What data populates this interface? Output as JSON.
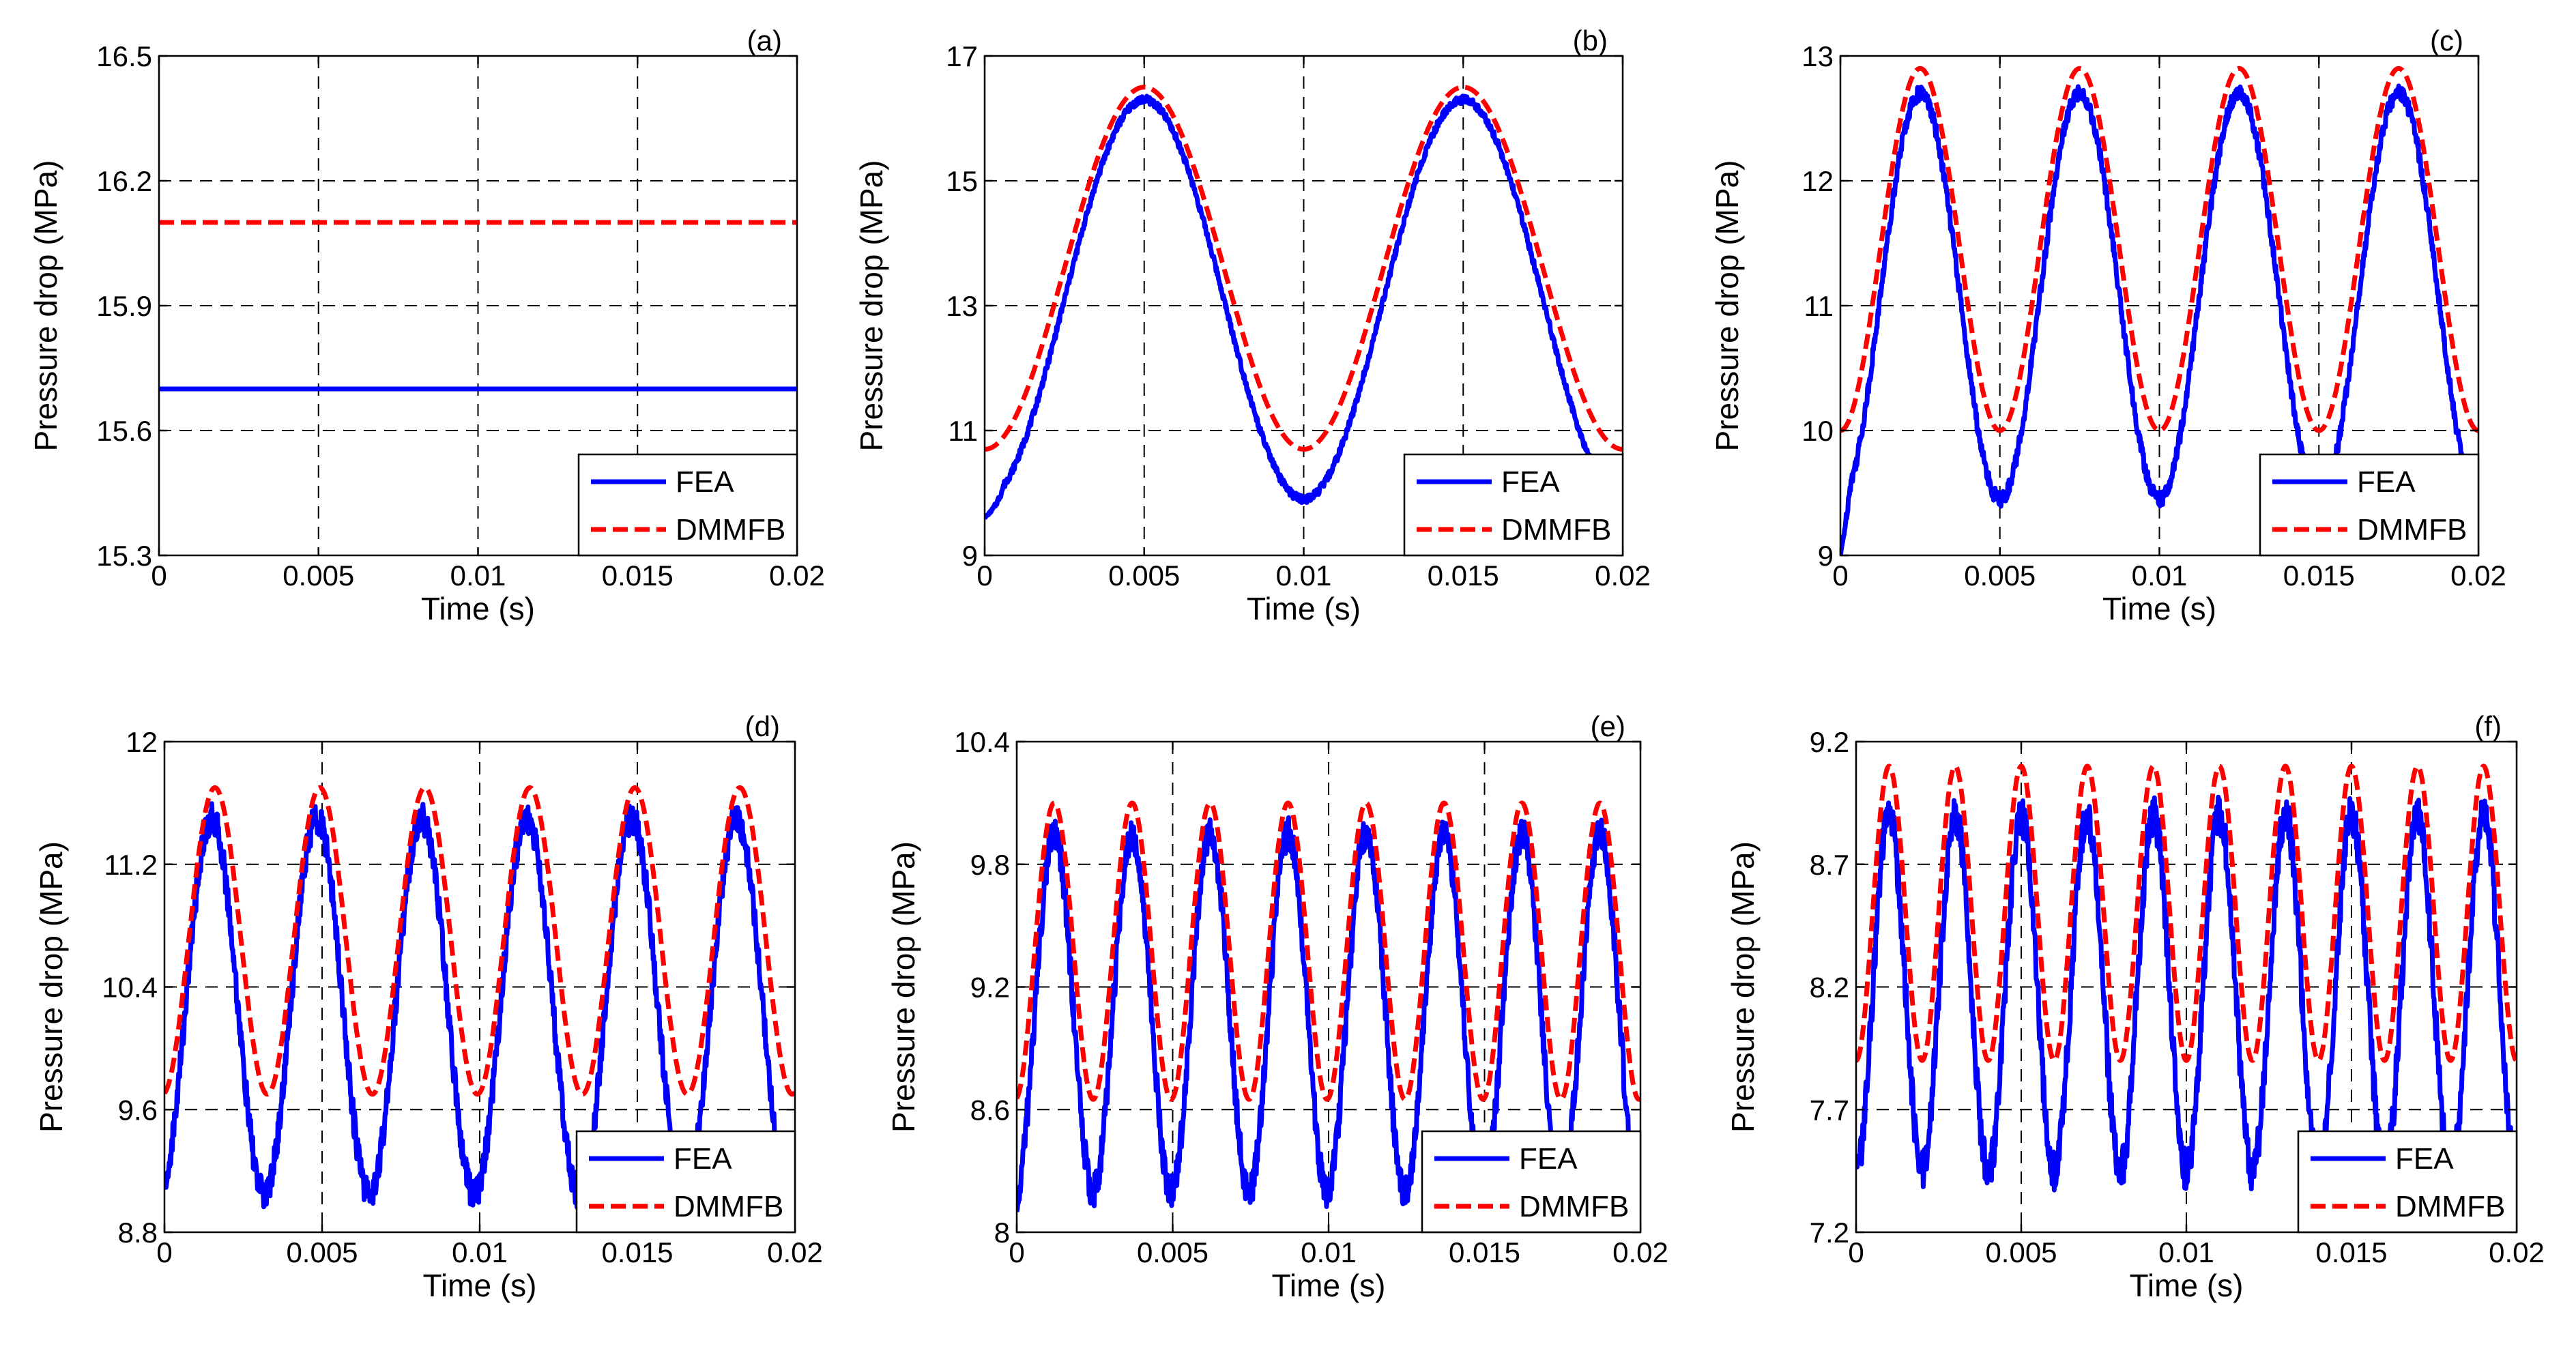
{
  "figure": {
    "xlabel": "Time (s)",
    "ylabel": "Pressure drop (MPa)",
    "legend_entries": [
      "FEA",
      "DMMFB"
    ],
    "colors": {
      "fea": "#0000ff",
      "dmmfb": "#ff0000"
    }
  },
  "chart_data": [
    {
      "panel_label": "(a)",
      "type": "line",
      "title": "",
      "xlabel": "Time (s)",
      "ylabel": "Pressure drop (MPa)",
      "xlim": [
        0,
        0.02
      ],
      "ylim": [
        15.3,
        16.5
      ],
      "xticks": [
        0,
        0.005,
        0.01,
        0.015,
        0.02
      ],
      "xtick_labels": [
        "0",
        "0.005",
        "0.01",
        "0.015",
        "0.02"
      ],
      "yticks": [
        15.3,
        15.6,
        15.9,
        16.2,
        16.5
      ],
      "ytick_labels": [
        "15.3",
        "15.6",
        "15.9",
        "16.2",
        "16.5"
      ],
      "grid": true,
      "legend": "bottom-right",
      "series": [
        {
          "name": "FEA",
          "style": "solid",
          "color": "#0000ff",
          "model": {
            "kind": "constant",
            "value": 15.7
          }
        },
        {
          "name": "DMMFB",
          "style": "dashed",
          "color": "#ff0000",
          "model": {
            "kind": "constant",
            "value": 16.1
          }
        }
      ]
    },
    {
      "panel_label": "(b)",
      "type": "line",
      "title": "",
      "xlabel": "Time (s)",
      "ylabel": "Pressure drop (MPa)",
      "xlim": [
        0,
        0.02
      ],
      "ylim": [
        9,
        17
      ],
      "xticks": [
        0,
        0.005,
        0.01,
        0.015,
        0.02
      ],
      "xtick_labels": [
        "0",
        "0.005",
        "0.01",
        "0.015",
        "0.02"
      ],
      "yticks": [
        9,
        11,
        13,
        15,
        17
      ],
      "ytick_labels": [
        "9",
        "11",
        "13",
        "15",
        "17"
      ],
      "grid": true,
      "legend": "bottom-right",
      "series": [
        {
          "name": "FEA",
          "style": "solid",
          "color": "#0000ff",
          "model": {
            "kind": "sinusoid",
            "min": 9.9,
            "max": 16.3,
            "period": 0.01,
            "peak_t": 0.005,
            "start": 9.6,
            "noise": 0.06
          }
        },
        {
          "name": "DMMFB",
          "style": "dashed",
          "color": "#ff0000",
          "model": {
            "kind": "sinusoid",
            "min": 10.7,
            "max": 16.5,
            "period": 0.01,
            "peak_t": 0.005,
            "noise": 0
          }
        }
      ]
    },
    {
      "panel_label": "(c)",
      "type": "line",
      "title": "",
      "xlabel": "Time (s)",
      "ylabel": "Pressure drop (MPa)",
      "xlim": [
        0,
        0.02
      ],
      "ylim": [
        9,
        13
      ],
      "xticks": [
        0,
        0.005,
        0.01,
        0.015,
        0.02
      ],
      "xtick_labels": [
        "0",
        "0.005",
        "0.01",
        "0.015",
        "0.02"
      ],
      "yticks": [
        9,
        10,
        11,
        12,
        13
      ],
      "ytick_labels": [
        "9",
        "10",
        "11",
        "12",
        "13"
      ],
      "grid": true,
      "legend": "bottom-right",
      "series": [
        {
          "name": "FEA",
          "style": "solid",
          "color": "#0000ff",
          "model": {
            "kind": "sinusoid",
            "min": 9.45,
            "max": 12.7,
            "period": 0.005,
            "peak_t": 0.0025,
            "start": 9.0,
            "noise": 0.06
          }
        },
        {
          "name": "DMMFB",
          "style": "dashed",
          "color": "#ff0000",
          "model": {
            "kind": "sinusoid",
            "min": 10.0,
            "max": 12.9,
            "period": 0.005,
            "peak_t": 0.0025,
            "noise": 0
          }
        }
      ]
    },
    {
      "panel_label": "(d)",
      "type": "line",
      "title": "",
      "xlabel": "Time (s)",
      "ylabel": "Pressure drop (MPa)",
      "xlim": [
        0,
        0.02
      ],
      "ylim": [
        8.8,
        12
      ],
      "xticks": [
        0,
        0.005,
        0.01,
        0.015,
        0.02
      ],
      "xtick_labels": [
        "0",
        "0.005",
        "0.01",
        "0.015",
        "0.02"
      ],
      "yticks": [
        8.8,
        9.6,
        10.4,
        11.2,
        12
      ],
      "ytick_labels": [
        "8.8",
        "9.6",
        "10.4",
        "11.2",
        "12"
      ],
      "grid": true,
      "legend": "bottom-right",
      "series": [
        {
          "name": "FEA",
          "style": "solid",
          "color": "#0000ff",
          "model": {
            "kind": "sinusoid",
            "min": 9.05,
            "max": 11.5,
            "period": 0.00333,
            "peak_t": 0.0015,
            "start": 9.1,
            "noise": 0.1
          }
        },
        {
          "name": "DMMFB",
          "style": "dashed",
          "color": "#ff0000",
          "model": {
            "kind": "sinusoid",
            "min": 9.7,
            "max": 11.7,
            "period": 0.00333,
            "peak_t": 0.0016,
            "noise": 0
          }
        }
      ]
    },
    {
      "panel_label": "(e)",
      "type": "line",
      "title": "",
      "xlabel": "Time (s)",
      "ylabel": "Pressure drop (MPa)",
      "xlim": [
        0,
        0.02
      ],
      "ylim": [
        8,
        10.4
      ],
      "xticks": [
        0,
        0.005,
        0.01,
        0.015,
        0.02
      ],
      "xtick_labels": [
        "0",
        "0.005",
        "0.01",
        "0.015",
        "0.02"
      ],
      "yticks": [
        8,
        8.6,
        9.2,
        9.8,
        10.4
      ],
      "ytick_labels": [
        "8",
        "8.6",
        "9.2",
        "9.8",
        "10.4"
      ],
      "grid": true,
      "legend": "bottom-right",
      "series": [
        {
          "name": "FEA",
          "style": "solid",
          "color": "#0000ff",
          "model": {
            "kind": "sinusoid",
            "min": 8.2,
            "max": 9.95,
            "period": 0.0025,
            "peak_t": 0.0012,
            "start": 8.1,
            "noise": 0.08
          }
        },
        {
          "name": "DMMFB",
          "style": "dashed",
          "color": "#ff0000",
          "model": {
            "kind": "sinusoid",
            "min": 8.65,
            "max": 10.1,
            "period": 0.0025,
            "peak_t": 0.0012,
            "noise": 0
          }
        }
      ]
    },
    {
      "panel_label": "(f)",
      "type": "line",
      "title": "",
      "xlabel": "Time (s)",
      "ylabel": "Pressure drop (MPa)",
      "xlim": [
        0,
        0.02
      ],
      "ylim": [
        7.2,
        9.2
      ],
      "xticks": [
        0,
        0.005,
        0.01,
        0.015,
        0.02
      ],
      "xtick_labels": [
        "0",
        "0.005",
        "0.01",
        "0.015",
        "0.02"
      ],
      "yticks": [
        7.2,
        7.7,
        8.2,
        8.7,
        9.2
      ],
      "ytick_labels": [
        "7.2",
        "7.7",
        "8.2",
        "8.7",
        "9.2"
      ],
      "grid": true,
      "legend": "bottom-right",
      "series": [
        {
          "name": "FEA",
          "style": "solid",
          "color": "#0000ff",
          "model": {
            "kind": "sinusoid",
            "min": 7.45,
            "max": 8.9,
            "period": 0.002,
            "peak_t": 0.001,
            "start": 7.5,
            "noise": 0.08
          }
        },
        {
          "name": "DMMFB",
          "style": "dashed",
          "color": "#ff0000",
          "model": {
            "kind": "sinusoid",
            "min": 7.9,
            "max": 9.1,
            "period": 0.002,
            "peak_t": 0.001,
            "noise": 0
          }
        }
      ]
    }
  ]
}
